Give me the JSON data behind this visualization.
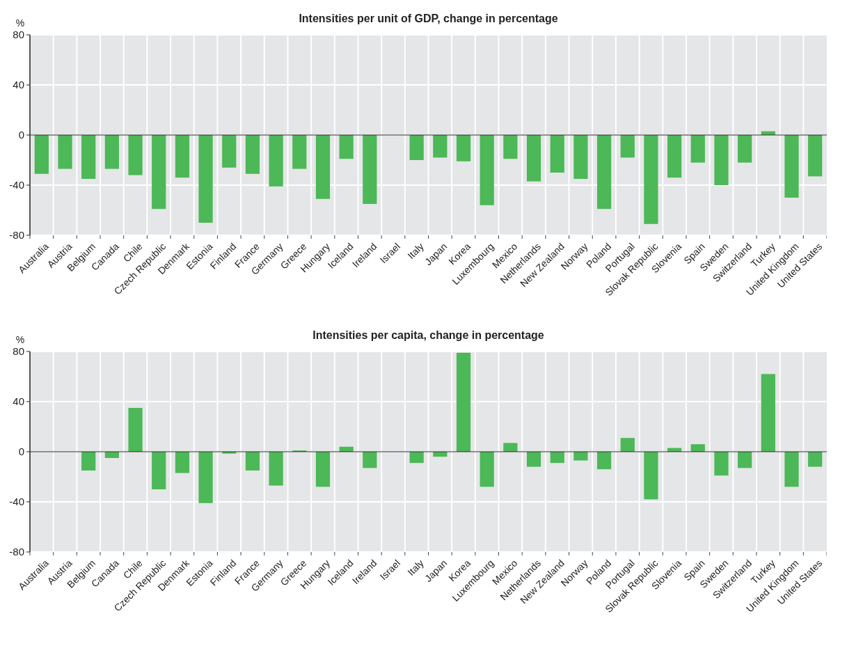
{
  "chart_data": [
    {
      "type": "bar",
      "title": "Intensities per unit of GDP, change in percentage",
      "ylabel": "%",
      "categories": [
        "Australia",
        "Austria",
        "Belgium",
        "Canada",
        "Chile",
        "Czech Republic",
        "Denmark",
        "Estonia",
        "Finland",
        "France",
        "Germany",
        "Greece",
        "Hungary",
        "Iceland",
        "Ireland",
        "Israel",
        "Italy",
        "Japan",
        "Korea",
        "Luxembourg",
        "Mexico",
        "Netherlands",
        "New Zealand",
        "Norway",
        "Poland",
        "Portugal",
        "Slovak Republic",
        "Slovenia",
        "Spain",
        "Sweden",
        "Switzerland",
        "Turkey",
        "United Kingdom",
        "United States"
      ],
      "series": [
        {
          "color": "#4cb857",
          "values": [
            -31,
            -27,
            -35,
            -27,
            -32,
            -59,
            -34,
            -70,
            -26,
            -31,
            -41,
            -27,
            -51,
            -19,
            -55,
            null,
            -20,
            -18,
            -21,
            -56,
            -19,
            -37,
            -30,
            -35,
            -59,
            -18,
            -71,
            -34,
            -22,
            -40,
            -22,
            3,
            -50,
            -33
          ]
        }
      ],
      "ylim": [
        -80,
        80
      ],
      "yticks": [
        -80,
        -40,
        0,
        40,
        80
      ],
      "grid": true
    },
    {
      "type": "bar",
      "title": "Intensities per capita, change in percentage",
      "ylabel": "%",
      "categories": [
        "Australia",
        "Austria",
        "Belgium",
        "Canada",
        "Chile",
        "Czech Republic",
        "Denmark",
        "Estonia",
        "Finland",
        "France",
        "Germany",
        "Greece",
        "Hungary",
        "Iceland",
        "Ireland",
        "Israel",
        "Italy",
        "Japan",
        "Korea",
        "Luxembourg",
        "Mexico",
        "Netherlands",
        "New Zealand",
        "Norway",
        "Poland",
        "Portugal",
        "Slovak Republic",
        "Slovenia",
        "Spain",
        "Sweden",
        "Switzerland",
        "Turkey",
        "United Kingdom",
        "United States"
      ],
      "series": [
        {
          "color": "#4cb857",
          "values": [
            0,
            0,
            -15,
            -5,
            35,
            -30,
            -17,
            -41,
            -1.5,
            -15,
            -27,
            1,
            -28,
            4,
            -13,
            null,
            -9,
            -4,
            79,
            -28,
            7,
            -12,
            -9,
            -7,
            -14,
            11,
            -38,
            3,
            6,
            -19,
            -13,
            62,
            -28,
            -12
          ]
        }
      ],
      "ylim": [
        -80,
        80
      ],
      "yticks": [
        -80,
        -40,
        0,
        40,
        80
      ],
      "grid": true
    }
  ]
}
